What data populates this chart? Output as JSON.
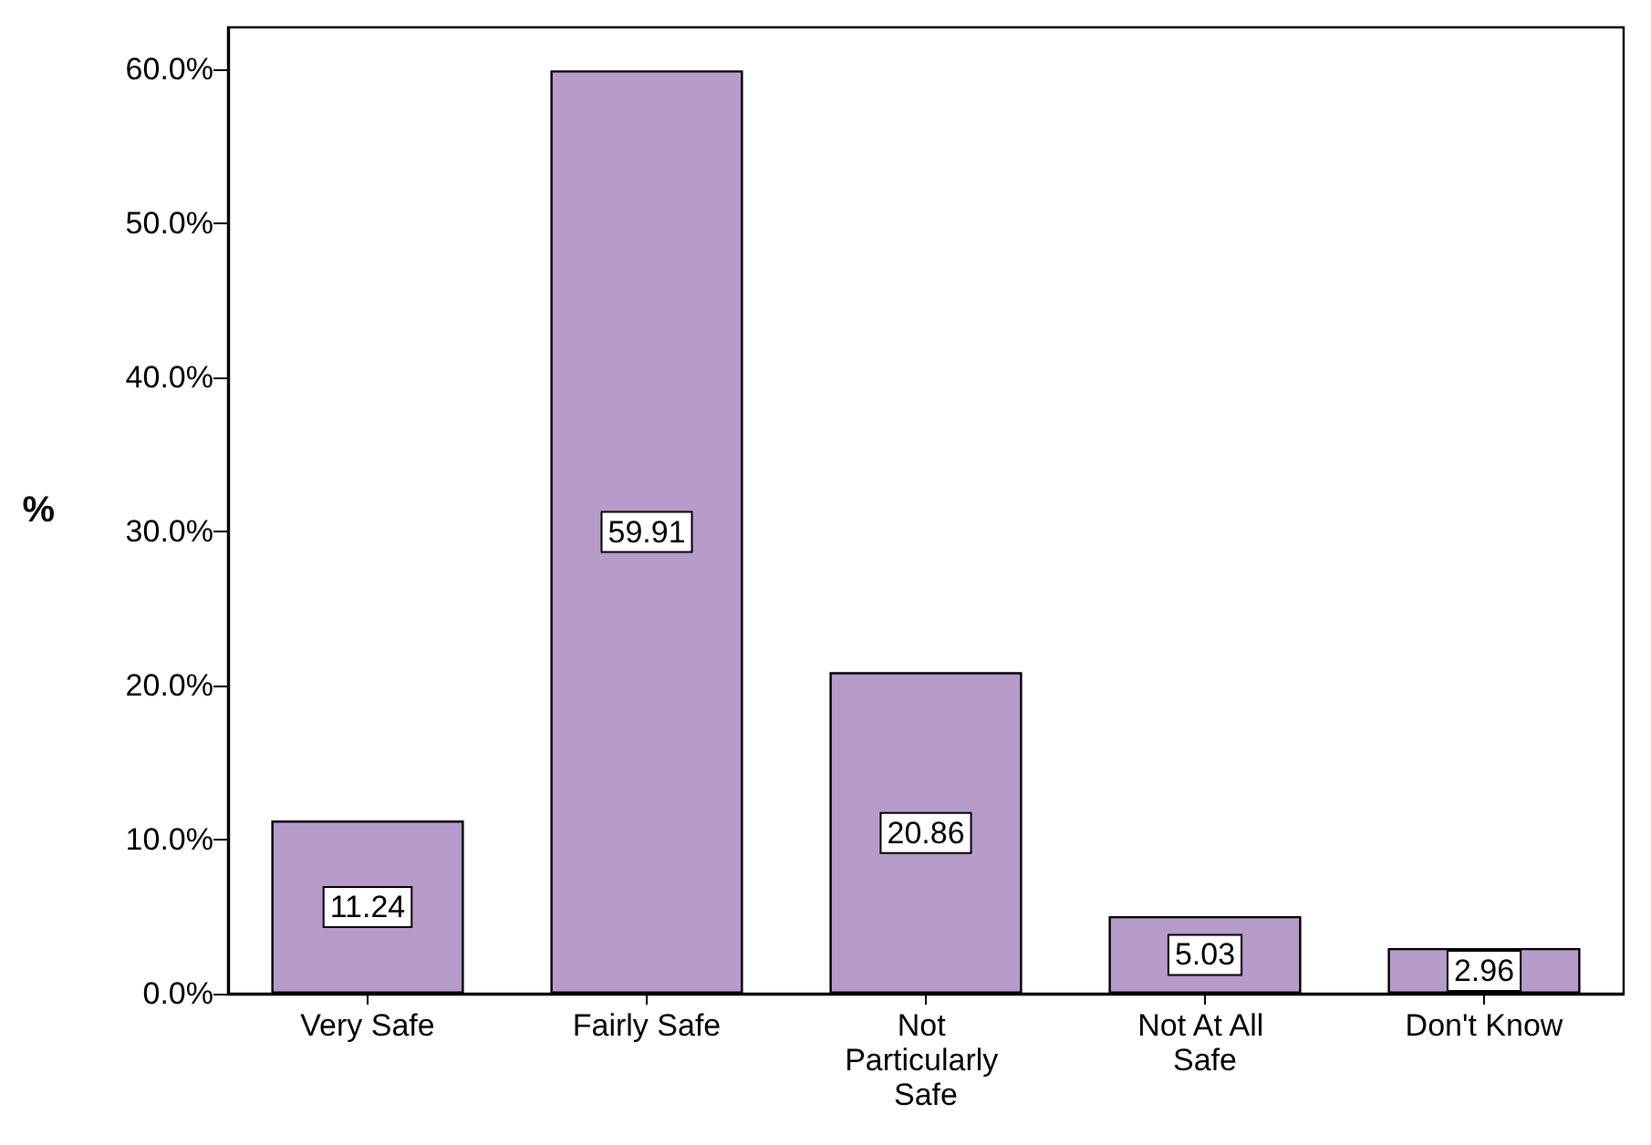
{
  "chart_data": {
    "type": "bar",
    "ylabel": "%",
    "categories": [
      "Very Safe",
      "Fairly Safe",
      "Not Particularly Safe",
      "Not At All Safe",
      "Don't Know"
    ],
    "values": [
      11.24,
      59.91,
      20.86,
      5.03,
      2.96
    ],
    "color": "#b79bcb",
    "ylim": [
      0,
      62.7
    ],
    "yticks": [
      {
        "value": 0,
        "label": "0.0%"
      },
      {
        "value": 10,
        "label": "10.0%"
      },
      {
        "value": 20,
        "label": "20.0%"
      },
      {
        "value": 30,
        "label": "30.0%"
      },
      {
        "value": 40,
        "label": "40.0%"
      },
      {
        "value": 50,
        "label": "50.0%"
      },
      {
        "value": 60,
        "label": "60.0%"
      }
    ],
    "data_labels": true
  }
}
